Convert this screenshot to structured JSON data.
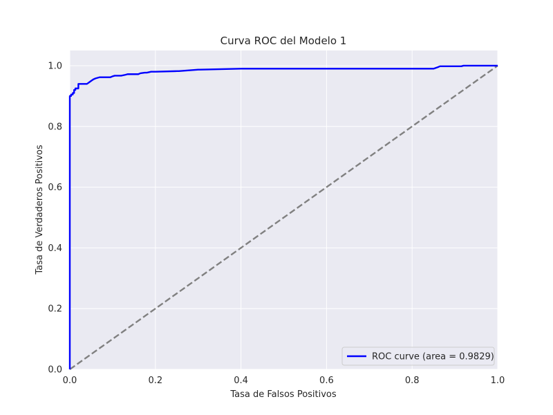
{
  "chart_data": {
    "type": "line",
    "title": "Curva ROC del Modelo 1",
    "xlabel": "Tasa de Falsos Positivos",
    "ylabel": "Tasa de Verdaderos Positivos",
    "xlim": [
      0.0,
      1.0
    ],
    "ylim": [
      0.0,
      1.05
    ],
    "x_ticks": [
      "0.0",
      "0.2",
      "0.4",
      "0.6",
      "0.8",
      "1.0"
    ],
    "y_ticks": [
      "0.0",
      "0.2",
      "0.4",
      "0.6",
      "0.8",
      "1.0"
    ],
    "grid": true,
    "legend_position": "lower-right",
    "background_color": "#eaeaf2",
    "series": [
      {
        "name": "ROC curve (area = 0.9829)",
        "color": "#0000ff",
        "style": "solid",
        "x": [
          0.0,
          0.0,
          0.0,
          0.003,
          0.003,
          0.007,
          0.007,
          0.01,
          0.01,
          0.013,
          0.013,
          0.02,
          0.02,
          0.04,
          0.045,
          0.05,
          0.055,
          0.06,
          0.065,
          0.07,
          0.095,
          0.1,
          0.105,
          0.12,
          0.13,
          0.135,
          0.16,
          0.165,
          0.175,
          0.18,
          0.19,
          0.2,
          0.25,
          0.255,
          0.3,
          0.305,
          0.4,
          0.405,
          0.85,
          0.86,
          0.865,
          0.915,
          0.92,
          1.0
        ],
        "y": [
          0.0,
          0.895,
          0.9,
          0.9,
          0.905,
          0.905,
          0.91,
          0.91,
          0.92,
          0.92,
          0.925,
          0.925,
          0.94,
          0.94,
          0.945,
          0.95,
          0.955,
          0.958,
          0.96,
          0.962,
          0.962,
          0.965,
          0.967,
          0.967,
          0.97,
          0.972,
          0.972,
          0.975,
          0.977,
          0.977,
          0.98,
          0.98,
          0.982,
          0.982,
          0.987,
          0.987,
          0.99,
          0.99,
          0.99,
          0.995,
          0.998,
          0.998,
          1.0,
          1.0
        ]
      },
      {
        "name": "",
        "color": "#808080",
        "style": "dashed",
        "x": [
          0.0,
          1.0
        ],
        "y": [
          0.0,
          1.0
        ]
      }
    ]
  }
}
